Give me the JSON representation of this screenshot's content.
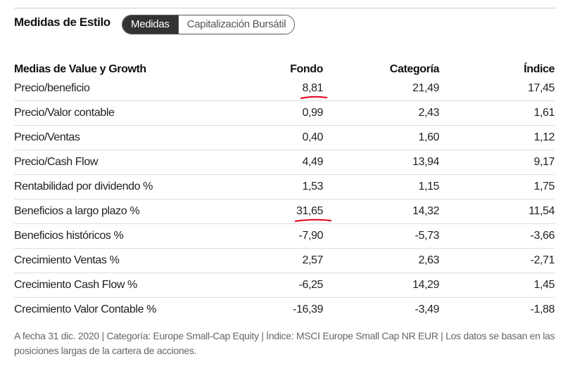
{
  "title": "Medidas de Estilo",
  "tabs": [
    {
      "label": "Medidas",
      "active": true
    },
    {
      "label": "Capitalización Bursátil",
      "active": false
    }
  ],
  "table": {
    "headers": [
      "Medias de Value y Growth",
      "Fondo",
      "Categoría",
      "Índice"
    ],
    "rows": [
      [
        "Precio/beneficio",
        "8,81",
        "21,49",
        "17,45"
      ],
      [
        "Precio/Valor contable",
        "0,99",
        "2,43",
        "1,61"
      ],
      [
        "Precio/Ventas",
        "0,40",
        "1,60",
        "1,12"
      ],
      [
        "Precio/Cash Flow",
        "4,49",
        "13,94",
        "9,17"
      ],
      [
        "Rentabilidad por dividendo %",
        "1,53",
        "1,15",
        "1,75"
      ],
      [
        "Beneficios a largo plazo %",
        "31,65",
        "14,32",
        "11,54"
      ],
      [
        "Beneficios históricos %",
        "-7,90",
        "-5,73",
        "-3,66"
      ],
      [
        "Crecimiento Ventas %",
        "2,57",
        "2,63",
        "-2,71"
      ],
      [
        "Crecimiento Cash Flow %",
        "-6,25",
        "14,29",
        "1,45"
      ],
      [
        "Crecimiento Valor Contable %",
        "-16,39",
        "-3,49",
        "-1,88"
      ]
    ],
    "underlined_rows": [
      0,
      5
    ]
  },
  "footer": "A fecha 31 dic. 2020 | Categoría: Europe Small-Cap Equity | Índice: MSCI Europe Small Cap NR EUR | Los datos se basan en las posiciones largas de la cartera de acciones.",
  "colors": {
    "annotation": "#e0001a",
    "active_tab": "#333333"
  }
}
